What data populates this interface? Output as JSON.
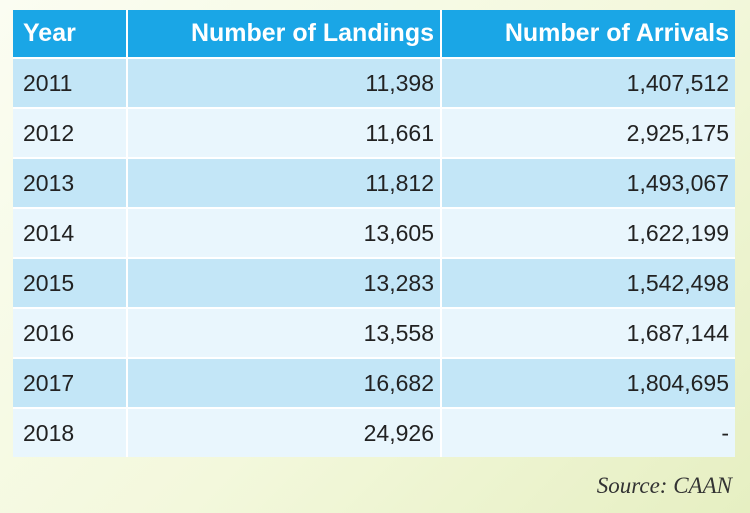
{
  "table": {
    "headers": [
      "Year",
      "Number of Landings",
      "Number of Arrivals"
    ],
    "rows": [
      [
        "2011",
        "11,398",
        "1,407,512"
      ],
      [
        "2012",
        "11,661",
        "2,925,175"
      ],
      [
        "2013",
        "11,812",
        "1,493,067"
      ],
      [
        "2014",
        "13,605",
        "1,622,199"
      ],
      [
        "2015",
        "13,283",
        "1,542,498"
      ],
      [
        "2016",
        "13,558",
        "1,687,144"
      ],
      [
        "2017",
        "16,682",
        "1,804,695"
      ],
      [
        "2018",
        "24,926",
        "-"
      ]
    ]
  },
  "source": "Source: CAAN",
  "colors": {
    "header_bg": "#1aa6e6",
    "row_odd": "#c3e6f7",
    "row_even": "#e9f6fd"
  }
}
